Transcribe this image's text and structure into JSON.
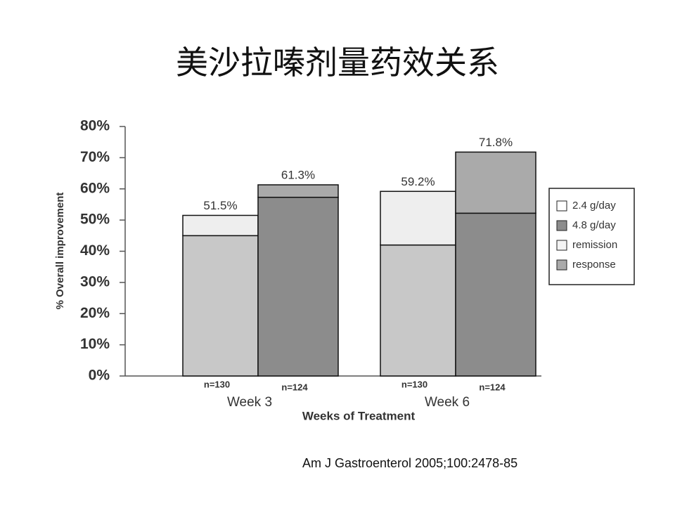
{
  "chart_data": {
    "type": "stacked_bar",
    "title": "美沙拉嗪剂量药效关系",
    "ylabel": "% Overall improvement",
    "xlabel": "Weeks of Treatment",
    "categories": [
      "Week 3",
      "Week 6"
    ],
    "ylim": [
      0,
      80
    ],
    "yticks": [
      {
        "value": 0,
        "label": "0%"
      },
      {
        "value": 10,
        "label": "10%"
      },
      {
        "value": 20,
        "label": "20%"
      },
      {
        "value": 30,
        "label": "30%"
      },
      {
        "value": 40,
        "label": "40%"
      },
      {
        "value": 50,
        "label": "50%"
      },
      {
        "value": 60,
        "label": "60%"
      },
      {
        "value": 70,
        "label": "70%"
      },
      {
        "value": 80,
        "label": "80%"
      }
    ],
    "segments": [
      "remission",
      "response"
    ],
    "doses": [
      {
        "name": "2.4 g/day",
        "color": "#ffffff",
        "n_labels": [
          "n=130",
          "n=130"
        ],
        "remission": [
          45,
          42
        ],
        "response": [
          6.5,
          17.2
        ],
        "remission_color": "#c8c8c8",
        "response_color": "#eeeeee",
        "totals": [
          51.5,
          59.2
        ],
        "total_labels": [
          "51.5%",
          "59.2%"
        ]
      },
      {
        "name": "4.8 g/day",
        "color": "#8c8c8c",
        "n_labels": [
          "n=124",
          "n=124"
        ],
        "remission": [
          57.3,
          52.2
        ],
        "response": [
          4.0,
          19.6
        ],
        "remission_color": "#8c8c8c",
        "response_color": "#aaaaaa",
        "totals": [
          61.3,
          71.8
        ],
        "total_labels": [
          "61.3%",
          "71.8%"
        ]
      }
    ],
    "segment_colors": [
      "#f4f4f4",
      "#aaaaaa"
    ],
    "citation": "Am J Gastroenterol 2005;100:2478-85"
  }
}
